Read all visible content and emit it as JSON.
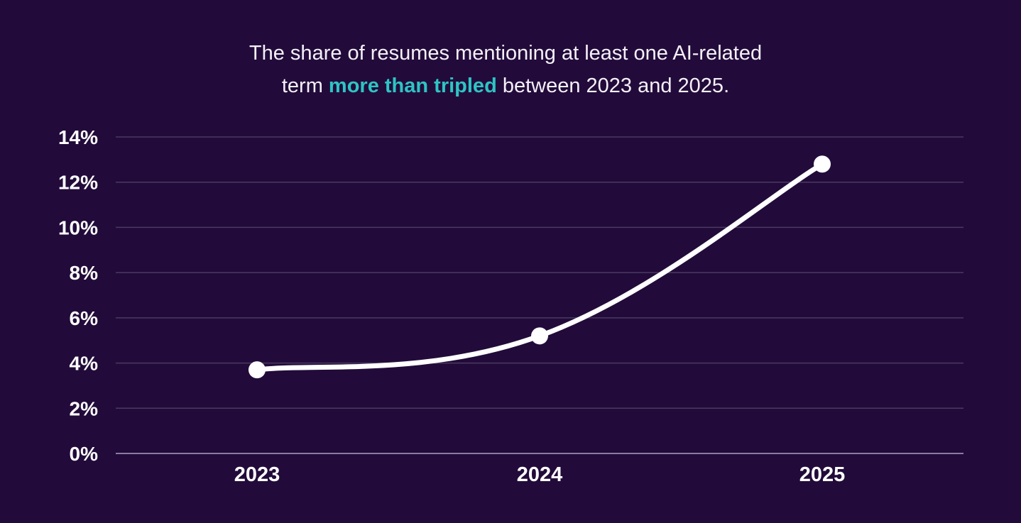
{
  "title": {
    "part1": "The share of resumes mentioning at least one AI-related",
    "part2": "term ",
    "highlight": "more than tripled",
    "part3": " between 2023 and 2025."
  },
  "colors": {
    "background": "#220b3a",
    "highlight": "#2ec4c4",
    "line": "#ffffff",
    "grid": "#4a3a60"
  },
  "chart_data": {
    "type": "line",
    "categories": [
      "2023",
      "2024",
      "2025"
    ],
    "series": [
      {
        "values": [
          3.7,
          5.2,
          12.8
        ]
      }
    ],
    "y_ticks": [
      "0%",
      "2%",
      "4%",
      "6%",
      "8%",
      "10%",
      "12%",
      "14%"
    ],
    "ylim": [
      0,
      14
    ],
    "grid": true,
    "smooth": true
  }
}
